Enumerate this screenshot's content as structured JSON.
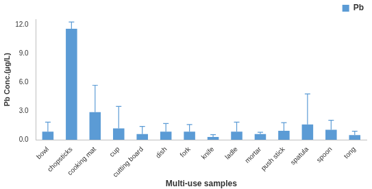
{
  "chart_data": {
    "type": "bar",
    "x_label": "Multi-use samples",
    "y_label": "Pb Conc.(μg/L)",
    "categories": [
      "bowl",
      "chopsticks",
      "cooking mat",
      "cup",
      "cutting board",
      "dish",
      "fork",
      "knife",
      "ladle",
      "mortar",
      "push stick",
      "spatula",
      "spoon",
      "tong"
    ],
    "series": [
      {
        "name": "Pb",
        "color": "#5b9bd5",
        "values": [
          0.85,
          11.6,
          2.9,
          1.2,
          0.6,
          0.85,
          0.85,
          0.3,
          0.85,
          0.6,
          0.95,
          1.6,
          1.05,
          0.5
        ],
        "errors": [
          1.0,
          0.7,
          2.8,
          2.3,
          0.8,
          0.85,
          0.75,
          0.25,
          1.0,
          0.2,
          0.85,
          3.2,
          1.0,
          0.4
        ]
      }
    ],
    "ylim": [
      0,
      12.6
    ],
    "yticks": [
      {
        "value": 0,
        "label": "0.0"
      },
      {
        "value": 3,
        "label": "3.0"
      },
      {
        "value": 6,
        "label": "6.0"
      },
      {
        "value": 9,
        "label": "9.0"
      },
      {
        "value": 12,
        "label": "12.0"
      }
    ],
    "grid": false,
    "legend": "top-right"
  }
}
